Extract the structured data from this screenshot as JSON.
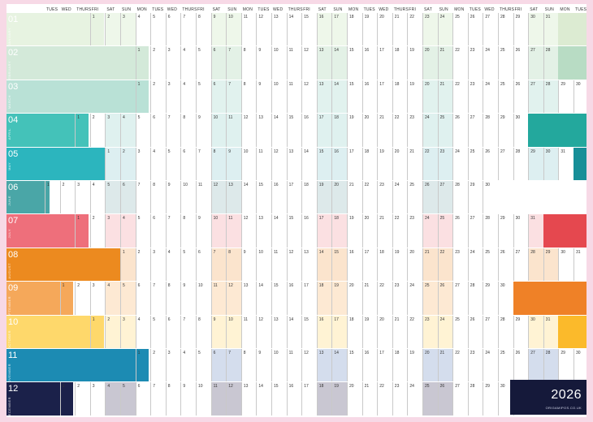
{
  "day_headers": [
    "TUES",
    "WED",
    "THURS",
    "FRI",
    "SAT",
    "SUN",
    "MON",
    "TUES",
    "WED",
    "THURS",
    "FRI",
    "SAT",
    "SUN",
    "MON",
    "TUES",
    "WED",
    "THURS",
    "FRI",
    "SAT",
    "SUN",
    "MON",
    "TUES",
    "WED",
    "THURS",
    "FRI",
    "SAT",
    "SUN",
    "MON",
    "TUES",
    "WED",
    "THURS",
    "FRI",
    "SAT",
    "SUN",
    "MON",
    "TUES"
  ],
  "months": [
    {
      "num": "01",
      "name": "JANUARY",
      "start": 3,
      "days": 31,
      "color": "#e7f3e1",
      "weekend": "#eef7ea",
      "tail": "#dcebd2"
    },
    {
      "num": "02",
      "name": "FEBRUARY",
      "start": 6,
      "days": 28,
      "color": "#d3e9d9",
      "weekend": "#e3f1e6",
      "tail": "#b8dcc4"
    },
    {
      "num": "03",
      "name": "MARCH",
      "start": 6,
      "days": 31,
      "color": "#b9e1d6",
      "weekend": "#e1f2ee",
      "tail": "#e1f2ee"
    },
    {
      "num": "04",
      "name": "APRIL",
      "start": 2,
      "days": 30,
      "color": "#44c2b9",
      "weekend": "#dff1ef",
      "tail": "#23a89d"
    },
    {
      "num": "05",
      "name": "MAY",
      "start": 4,
      "days": 31,
      "color": "#2cb5be",
      "weekend": "#ddeff1",
      "tail": "#178f98"
    },
    {
      "num": "06",
      "name": "JUNE",
      "start": 0,
      "days": 30,
      "color": "#4aa6a7",
      "weekend": "#dde9ea",
      "tail": "#ffffff"
    },
    {
      "num": "07",
      "name": "JULY",
      "start": 2,
      "days": 31,
      "color": "#ee6f7b",
      "weekend": "#fbe0e2",
      "tail": "#e5484f"
    },
    {
      "num": "08",
      "name": "AUGUST",
      "start": 5,
      "days": 31,
      "color": "#ec8a1f",
      "weekend": "#fbe4cd",
      "tail": "#cf5a0c"
    },
    {
      "num": "09",
      "name": "SEPTEMBER",
      "start": 1,
      "days": 30,
      "color": "#f5a85a",
      "weekend": "#fde9d3",
      "tail": "#ef8127"
    },
    {
      "num": "10",
      "name": "OCTOBER",
      "start": 3,
      "days": 31,
      "color": "#fed86b",
      "weekend": "#fff3d4",
      "tail": "#fbba2b"
    },
    {
      "num": "11",
      "name": "NOVEMBER",
      "start": 6,
      "days": 30,
      "color": "#1c8bb3",
      "weekend": "#d4dded",
      "tail": "#0f6c93"
    },
    {
      "num": "12",
      "name": "DECEMBER",
      "start": 1,
      "days": 31,
      "color": "#1b214a",
      "weekend": "#c9c7d2",
      "tail": "#ffffff"
    }
  ],
  "brand": {
    "year": "2026",
    "site": "ORIGAMIPOS.CO.UK"
  }
}
